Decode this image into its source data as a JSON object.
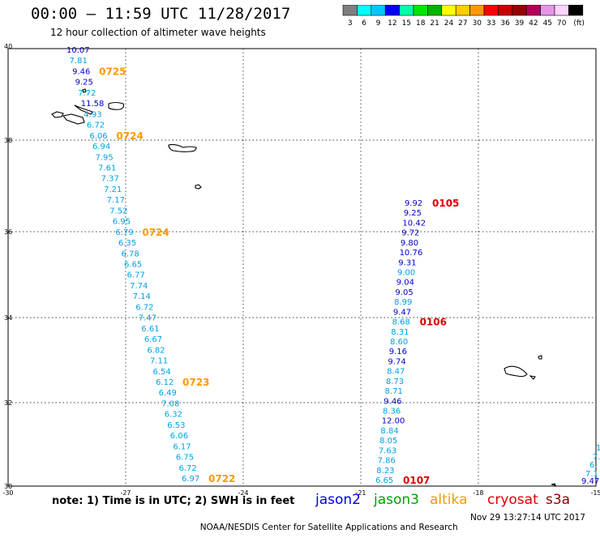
{
  "header": {
    "title": "00:00 – 11:59 UTC 11/28/2017",
    "subtitle": "12 hour collection of altimeter wave heights"
  },
  "colorbar": {
    "colors": [
      "#7f7f7f",
      "#00ffff",
      "#00c8ff",
      "#0000ff",
      "#00ffaa",
      "#00e600",
      "#00b400",
      "#ffff00",
      "#ffcc00",
      "#ff9900",
      "#ff0000",
      "#c80000",
      "#960000",
      "#b4005a",
      "#e696e6",
      "#ffd2ff",
      "#000000"
    ],
    "labels": [
      "3",
      "6",
      "9",
      "12",
      "15",
      "18",
      "21",
      "24",
      "27",
      "30",
      "33",
      "36",
      "39",
      "42",
      "45",
      "70",
      "(ft)"
    ]
  },
  "map": {
    "lon_range": [
      -30,
      -15
    ],
    "lat_range": [
      30,
      40
    ],
    "x_ticks": [
      "-30",
      "-27",
      "-24",
      "-21",
      "-18",
      "-15"
    ],
    "y_ticks": [
      "40",
      "38",
      "36",
      "34",
      "32",
      "30"
    ],
    "colors": {
      "light": "#00a0e6",
      "dark": "#0000c8",
      "time_orange": "#ff9900",
      "time_red": "#dc0000"
    },
    "track_west": {
      "values": [
        "10.07",
        "7.81",
        "9.46",
        "9.25",
        "7.72",
        "11.58",
        "4.93",
        "6.72",
        "6.06",
        "6.94",
        "7.95",
        "7.61",
        "7.37",
        "7.21",
        "7.17",
        "7.52",
        "6.95",
        "6.79",
        "6.35",
        "6.78",
        "6.65",
        "6.77",
        "7.74",
        "7.14",
        "6.72",
        "7.47",
        "6.61",
        "6.67",
        "6.82",
        "7.11",
        "6.54",
        "6.12",
        "6.49",
        "7.08",
        "6.32",
        "6.53",
        "6.06",
        "6.17",
        "6.75",
        "6.72",
        "6.97"
      ],
      "shade": [
        "d",
        "l",
        "d",
        "d",
        "l",
        "d",
        "l",
        "l",
        "l",
        "l",
        "l",
        "l",
        "l",
        "l",
        "l",
        "l",
        "l",
        "l",
        "l",
        "l",
        "l",
        "l",
        "l",
        "l",
        "l",
        "l",
        "l",
        "l",
        "l",
        "l",
        "l",
        "l",
        "l",
        "l",
        "l",
        "l",
        "l",
        "l",
        "l",
        "l",
        "l"
      ],
      "times": [
        {
          "label": "0725",
          "index": 2
        },
        {
          "label": "0724",
          "index": 8
        },
        {
          "label": "0724",
          "index": 17
        },
        {
          "label": "0723",
          "index": 31
        },
        {
          "label": "0722",
          "index": 40
        }
      ]
    },
    "track_east": {
      "values": [
        "9.92",
        "9.25",
        "10.42",
        "9.72",
        "9.80",
        "10.76",
        "9.31",
        "9.00",
        "9.04",
        "9.05",
        "8.99",
        "9.47",
        "8.68",
        "8.31",
        "8.60",
        "9.16",
        "9.74",
        "8.47",
        "8.73",
        "8.71",
        "9.46",
        "8.36",
        "12.00",
        "8.84",
        "8.05",
        "7.63",
        "7.86",
        "8.23",
        "6.65"
      ],
      "shade": [
        "d",
        "d",
        "d",
        "d",
        "d",
        "d",
        "d",
        "l",
        "d",
        "d",
        "l",
        "d",
        "l",
        "l",
        "l",
        "d",
        "d",
        "l",
        "l",
        "l",
        "d",
        "l",
        "d",
        "l",
        "l",
        "l",
        "l",
        "l",
        "l"
      ],
      "times": [
        {
          "label": "0105",
          "index": 0
        },
        {
          "label": "0106",
          "index": 12
        },
        {
          "label": "0107",
          "index": 28
        }
      ]
    },
    "edge_values": [
      "9.47",
      "7.1",
      "6.",
      "7.",
      "1"
    ]
  },
  "notes": {
    "text": "note:  1) Time is in UTC;  2) SWH is in feet",
    "legend": [
      {
        "label": "jason2",
        "color": "#0000dc"
      },
      {
        "label": "jason3",
        "color": "#00a000"
      },
      {
        "label": "altika",
        "color": "#ff9900"
      },
      {
        "label": "cryosat",
        "color": "#dc0000"
      },
      {
        "label": "s3a",
        "color": "#8b0000"
      }
    ]
  },
  "footer": {
    "center": "NOAA/NESDIS Center for Satellite Applications and Research",
    "timestamp": "Nov 29 13:27:14 UTC 2017"
  }
}
